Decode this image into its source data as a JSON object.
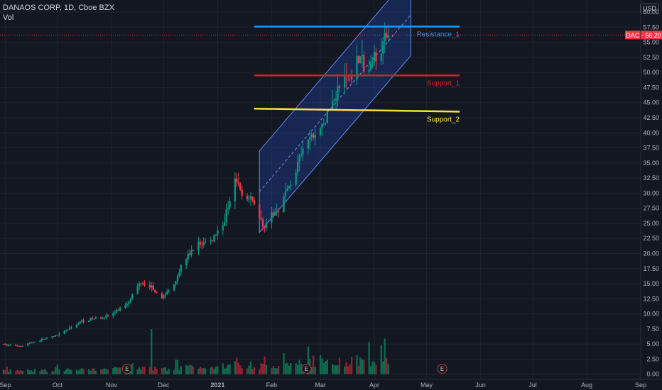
{
  "header": {
    "symbol": "DANAOS CORP",
    "sep1": ", ",
    "interval": "1D",
    "sep2": ", ",
    "exchange": "Cboe BZX",
    "volume_label": "Vol",
    "currency": "USD"
  },
  "price_badge": {
    "ticker": "DAC",
    "separator": " · ",
    "value": "56.20",
    "color": "#f23645"
  },
  "colors": {
    "background": "#131722",
    "up": "#089981",
    "down": "#f23645",
    "volume_up": "#0e6b4f",
    "volume_down": "#8c2430",
    "channel": "#2962ff",
    "grid": "#1e222d"
  },
  "chart_data": {
    "type": "candlestick",
    "y_axis": {
      "range": [
        -0.5,
        62
      ],
      "ticks": [
        "0.00",
        "2.50",
        "5.00",
        "7.50",
        "10.00",
        "12.50",
        "15.00",
        "17.50",
        "20.00",
        "22.50",
        "25.00",
        "27.50",
        "30.00",
        "32.50",
        "35.00",
        "37.50",
        "40.00",
        "42.50",
        "45.00",
        "47.50",
        "50.00",
        "52.50",
        "55.00",
        "57.50",
        "60.00"
      ]
    },
    "x_axis": {
      "range": [
        "2020-08-29",
        "2021-09-01"
      ],
      "ticks": [
        {
          "label": "Sep",
          "date": "2020-09-01"
        },
        {
          "label": "Oct",
          "date": "2020-10-01"
        },
        {
          "label": "Nov",
          "date": "2020-11-01"
        },
        {
          "label": "Dec",
          "date": "2020-12-01"
        },
        {
          "label": "2021",
          "date": "2021-01-01"
        },
        {
          "label": "Feb",
          "date": "2021-02-01"
        },
        {
          "label": "Mar",
          "date": "2021-03-01"
        },
        {
          "label": "Apr",
          "date": "2021-04-01"
        },
        {
          "label": "May",
          "date": "2021-05-01"
        },
        {
          "label": "Jun",
          "date": "2021-06-01"
        },
        {
          "label": "Jul",
          "date": "2021-07-01"
        },
        {
          "label": "Aug",
          "date": "2021-08-01"
        },
        {
          "label": "Sep",
          "date": "2021-09-01"
        }
      ]
    },
    "price_anchors": [
      [
        "2020-08-31",
        4.9
      ],
      [
        "2020-09-10",
        4.7
      ],
      [
        "2020-09-20",
        5.6
      ],
      [
        "2020-10-01",
        6.4
      ],
      [
        "2020-10-15",
        8.8
      ],
      [
        "2020-11-01",
        9.8
      ],
      [
        "2020-11-10",
        11.8
      ],
      [
        "2020-11-18",
        15.4
      ],
      [
        "2020-11-24",
        14.5
      ],
      [
        "2020-11-30",
        12.7
      ],
      [
        "2020-12-06",
        14.5
      ],
      [
        "2020-12-12",
        18.5
      ],
      [
        "2020-12-20",
        21.5
      ],
      [
        "2020-12-28",
        22.0
      ],
      [
        "2021-01-05",
        25.5
      ],
      [
        "2021-01-11",
        33.2
      ],
      [
        "2021-01-15",
        29.5
      ],
      [
        "2021-01-22",
        28.5
      ],
      [
        "2021-01-27",
        24.5
      ],
      [
        "2021-02-05",
        27.5
      ],
      [
        "2021-02-14",
        33.0
      ],
      [
        "2021-02-21",
        38.5
      ],
      [
        "2021-03-01",
        40.5
      ],
      [
        "2021-03-06",
        43.5
      ],
      [
        "2021-03-12",
        48.0
      ],
      [
        "2021-03-19",
        50.0
      ],
      [
        "2021-03-24",
        53.5
      ],
      [
        "2021-03-27",
        49.0
      ],
      [
        "2021-04-01",
        52.5
      ],
      [
        "2021-04-09",
        56.2
      ]
    ],
    "volume_scale_max": 7.5,
    "levels": [
      {
        "name": "Resistance_1",
        "value": 57.6,
        "color": "#2196f3",
        "start": "2021-01-22",
        "end": "2021-05-20"
      },
      {
        "name": "Support_1",
        "value": 49.5,
        "color": "#c62828",
        "start": "2021-01-22",
        "end": "2021-05-20"
      },
      {
        "name": "Support_2",
        "value": 43.5,
        "color": "#f5e342",
        "start": "2021-01-22",
        "end": "2021-05-20",
        "start_value": 44.0
      }
    ],
    "channel": {
      "lower": [
        [
          "2021-01-25",
          23.5
        ],
        [
          "2021-04-22",
          52.8
        ]
      ],
      "upper": [
        [
          "2021-01-25",
          37.0
        ],
        [
          "2021-04-22",
          66.3
        ]
      ]
    },
    "earnings_markers": [
      {
        "label": "E",
        "date": "2020-11-10"
      },
      {
        "label": "E",
        "date": "2021-02-21"
      },
      {
        "label": "E",
        "date": "2021-05-10"
      }
    ]
  }
}
